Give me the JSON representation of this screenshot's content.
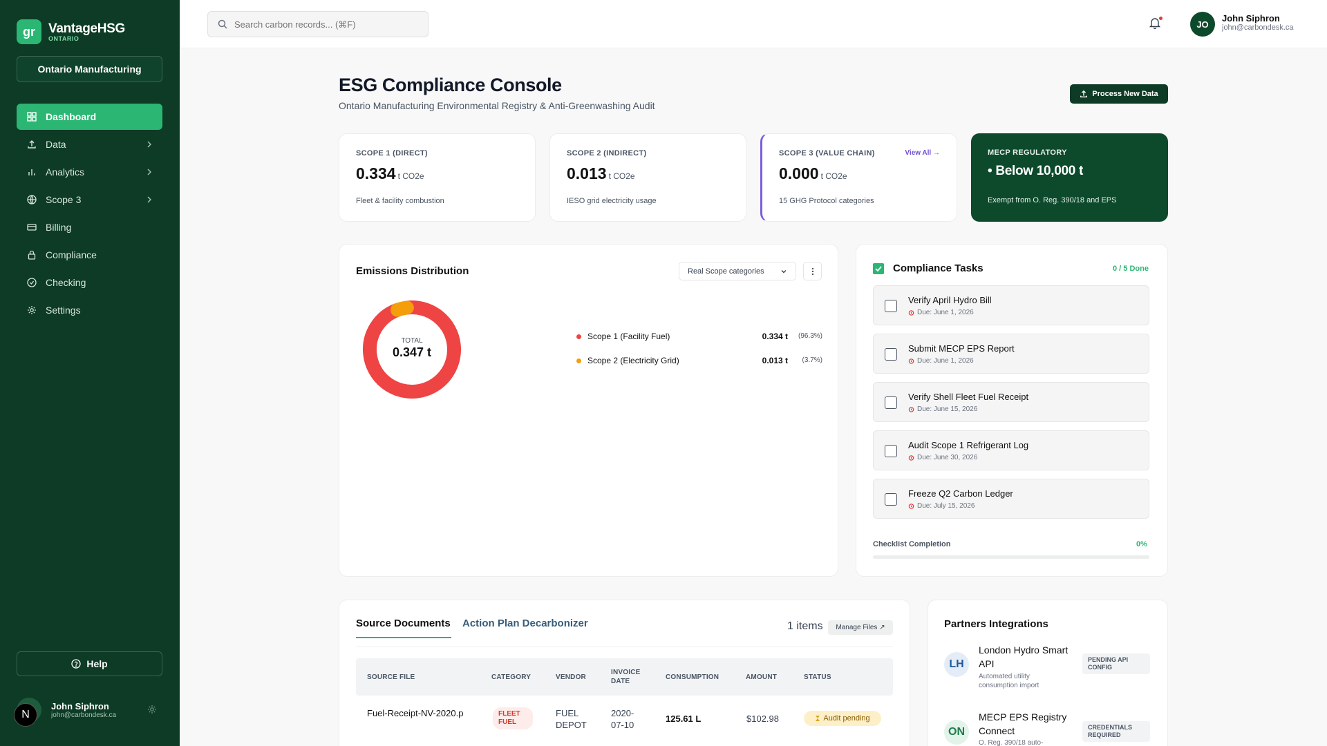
{
  "brand": {
    "logo_text": "gr",
    "name": "VantageHSG",
    "sub": "ONTARIO"
  },
  "org": {
    "label": "Ontario Manufacturing"
  },
  "nav": {
    "items": [
      {
        "label": "Dashboard",
        "icon": "dashboard-icon",
        "active": true
      },
      {
        "label": "Data",
        "icon": "upload-icon",
        "chevron": true
      },
      {
        "label": "Analytics",
        "icon": "bar-chart-icon",
        "chevron": true
      },
      {
        "label": "Scope 3",
        "icon": "globe-icon",
        "chevron": true
      },
      {
        "label": "Billing",
        "icon": "credit-card-icon"
      },
      {
        "label": "Compliance",
        "icon": "lock-icon"
      },
      {
        "label": "Checking",
        "icon": "check-circle-icon"
      },
      {
        "label": "Settings",
        "icon": "gear-icon"
      }
    ]
  },
  "help": {
    "label": "Help"
  },
  "sidebar_user": {
    "avatar_letter": "N",
    "name": "John Siphron",
    "email": "john@carbondesk.ca"
  },
  "header": {
    "search_placeholder": "Search carbon records... (⌘F)",
    "user": {
      "initials": "JO",
      "name": "John Siphron",
      "email": "john@carbondesk.ca"
    }
  },
  "page": {
    "title": "ESG Compliance Console",
    "subtitle": "Ontario Manufacturing Environmental Registry & Anti-Greenwashing Audit",
    "process_button": "Process New Data"
  },
  "kpis": [
    {
      "label": "SCOPE 1 (DIRECT)",
      "value": "0.334",
      "unit": "t CO2e",
      "desc": "Fleet & facility combustion"
    },
    {
      "label": "SCOPE 2 (INDIRECT)",
      "value": "0.013",
      "unit": "t CO2e",
      "desc": "IESO grid electricity usage"
    },
    {
      "label": "SCOPE 3 (VALUE CHAIN)",
      "value": "0.000",
      "unit": "t CO2e",
      "desc": "15 GHG Protocol categories",
      "link": "View All →"
    }
  ],
  "mecp": {
    "label": "MECP REGULATORY",
    "value": "• Below 10,000 t",
    "desc": "Exempt from O. Reg. 390/18 and EPS"
  },
  "emissions": {
    "title": "Emissions Distribution",
    "dropdown": "Real Scope categories",
    "total_label": "TOTAL",
    "total_value": "0.347 t",
    "legend": [
      {
        "name": "Scope 1 (Facility Fuel)",
        "value": "0.334 t",
        "pct": "(96.3%)",
        "color": "#ef4444"
      },
      {
        "name": "Scope 2 (Electricity Grid)",
        "value": "0.013 t",
        "pct": "(3.7%)",
        "color": "#f59e0b"
      }
    ]
  },
  "chart_data": {
    "type": "pie",
    "categories": [
      "Scope 1 (Facility Fuel)",
      "Scope 2 (Electricity Grid)"
    ],
    "values": [
      0.334,
      0.013
    ],
    "title": "Emissions Distribution",
    "legend": "right"
  },
  "tasks": {
    "title": "Compliance Tasks",
    "done": "0 / 5 Done",
    "items": [
      {
        "title": "Verify April Hydro Bill",
        "due": "Due: June 1, 2026"
      },
      {
        "title": "Submit MECP EPS Report",
        "due": "Due: June 1, 2026"
      },
      {
        "title": "Verify Shell Fleet Fuel Receipt",
        "due": "Due: June 15, 2026"
      },
      {
        "title": "Audit Scope 1 Refrigerant Log",
        "due": "Due: June 30, 2026"
      },
      {
        "title": "Freeze Q2 Carbon Ledger",
        "due": "Due: July 15, 2026"
      }
    ],
    "progress_label": "Checklist Completion",
    "progress_pct": "0%",
    "progress_value": 0
  },
  "documents": {
    "tab_active": "Source Documents",
    "tab_inactive": "Action Plan Decarbonizer",
    "items_count": "1 items",
    "manage_label": "Manage Files ↗",
    "columns": {
      "source": "SOURCE FILE",
      "category": "CATEGORY",
      "vendor": "VENDOR",
      "invoice_l1": "INVOICE",
      "invoice_l2": "DATE",
      "consumption": "CONSUMPTION",
      "amount": "AMOUNT",
      "status": "STATUS"
    },
    "row": {
      "source": "Fuel-Receipt-NV-2020.p",
      "cat_l1": "FLEET",
      "cat_l2": "FUEL",
      "vendor_l1": "FUEL",
      "vendor_l2": "DEPOT",
      "date_l1": "2020-",
      "date_l2": "07-10",
      "consumption": "125.61 L",
      "amount": "$102.98",
      "status": "Audit pending"
    }
  },
  "partners": {
    "title": "Partners Integrations",
    "items": [
      {
        "logo": "LH",
        "name": "London Hydro Smart API",
        "desc": "Automated utility consumption import",
        "badge_l1": "PENDING API",
        "badge_l2": "CONFIG"
      },
      {
        "logo": "ON",
        "name": "MECP EPS Registry Connect",
        "desc": "O. Reg. 390/18 auto-",
        "badge_l1": "CREDENTIALS",
        "badge_l2": "REQUIRED"
      }
    ]
  }
}
